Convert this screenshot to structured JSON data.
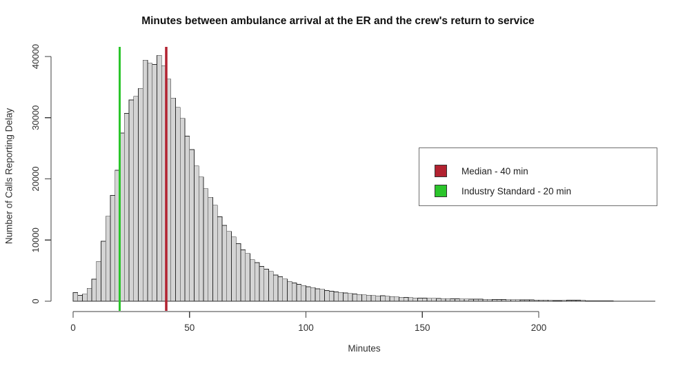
{
  "chart_data": {
    "type": "bar",
    "subtype": "histogram",
    "title": "Minutes between ambulance arrival at the ER and the crew's return to service",
    "xlabel": "Minutes",
    "ylabel": "Number of Calls Reporting Delay",
    "x_ticks": [
      0,
      50,
      100,
      150,
      200
    ],
    "y_ticks": [
      0,
      10000,
      20000,
      30000,
      40000
    ],
    "xlim": [
      0,
      250
    ],
    "ylim": [
      0,
      40200
    ],
    "grid": false,
    "bin_start_minutes": 0,
    "bin_width_minutes": 2,
    "values": [
      1400,
      950,
      1150,
      2100,
      3600,
      6500,
      9800,
      13900,
      17300,
      21400,
      27500,
      30700,
      32900,
      33500,
      34800,
      39400,
      38900,
      38700,
      40200,
      38500,
      36300,
      33200,
      31700,
      29900,
      27000,
      24800,
      22100,
      20300,
      18400,
      17000,
      15700,
      13800,
      12400,
      11400,
      10500,
      9400,
      8400,
      7800,
      6800,
      6300,
      5700,
      5250,
      4870,
      4270,
      4000,
      3630,
      3250,
      2980,
      2760,
      2570,
      2380,
      2230,
      2040,
      1930,
      1740,
      1620,
      1520,
      1430,
      1360,
      1270,
      1180,
      1100,
      1030,
      985,
      920,
      870,
      900,
      830,
      760,
      700,
      660,
      620,
      590,
      545,
      520,
      500,
      480,
      465,
      450,
      430,
      415,
      400,
      390,
      375,
      360,
      350,
      340,
      330,
      315,
      300,
      290,
      280,
      270,
      260,
      250,
      240,
      235,
      225,
      220,
      210,
      200,
      190,
      150,
      120,
      100,
      150,
      180,
      170,
      160,
      150,
      90,
      70,
      60,
      55,
      50,
      45,
      40,
      38,
      35,
      32,
      30,
      28,
      26,
      24,
      22
    ],
    "reference_lines": [
      {
        "name": "median",
        "x": 40,
        "color": "#b22230"
      },
      {
        "name": "industry-standard",
        "x": 20,
        "color": "#2bc52b"
      }
    ],
    "legend": {
      "position": "right",
      "entries": [
        {
          "label": "Median - 40 min",
          "color": "#b22230"
        },
        {
          "label": "Industry Standard - 20 min",
          "color": "#2bc52b"
        }
      ]
    }
  },
  "colors": {
    "bar_fill": "#d4d4d4",
    "bar_stroke": "#2b2b2b",
    "axis": "#3f3f3f",
    "tick_label": "#303030"
  }
}
